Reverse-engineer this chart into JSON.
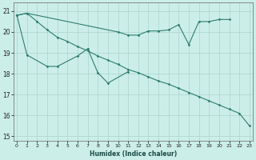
{
  "xlabel": "Humidex (Indice chaleur)",
  "x_values": [
    0,
    1,
    2,
    3,
    4,
    5,
    6,
    7,
    8,
    9,
    10,
    11,
    12,
    13,
    14,
    15,
    16,
    17,
    18,
    19,
    20,
    21,
    22,
    23
  ],
  "line1_x": [
    0,
    1,
    10,
    11,
    12,
    13,
    14,
    15,
    16,
    17,
    18,
    19,
    20,
    21
  ],
  "line1_y": [
    20.8,
    20.9,
    20.0,
    19.85,
    19.85,
    20.05,
    20.05,
    20.1,
    20.35,
    19.4,
    20.5,
    20.5,
    20.6,
    20.6
  ],
  "line2_x": [
    0,
    1,
    3,
    4,
    6,
    7,
    8,
    9,
    11
  ],
  "line2_y": [
    20.8,
    18.9,
    18.35,
    18.35,
    18.85,
    19.2,
    18.05,
    17.55,
    18.1
  ],
  "line3_x": [
    0,
    1,
    2,
    3,
    4,
    5,
    6,
    7,
    8,
    9,
    10,
    11,
    12,
    13,
    14,
    15,
    16,
    17,
    18,
    19,
    20,
    21,
    22,
    23
  ],
  "line3_y": [
    20.8,
    20.9,
    20.5,
    20.1,
    19.75,
    19.55,
    19.3,
    19.1,
    18.85,
    18.65,
    18.45,
    18.2,
    18.05,
    17.85,
    17.65,
    17.5,
    17.3,
    17.1,
    16.9,
    16.7,
    16.5,
    16.3,
    16.1,
    15.5
  ],
  "line_color": "#2e7d6e",
  "bg_color": "#cceee8",
  "grid_color": "#aad4cc",
  "ylim": [
    14.8,
    21.4
  ],
  "yticks": [
    15,
    16,
    17,
    18,
    19,
    20,
    21
  ],
  "xlim": [
    -0.3,
    23.3
  ],
  "figsize": [
    3.2,
    2.0
  ],
  "dpi": 100
}
